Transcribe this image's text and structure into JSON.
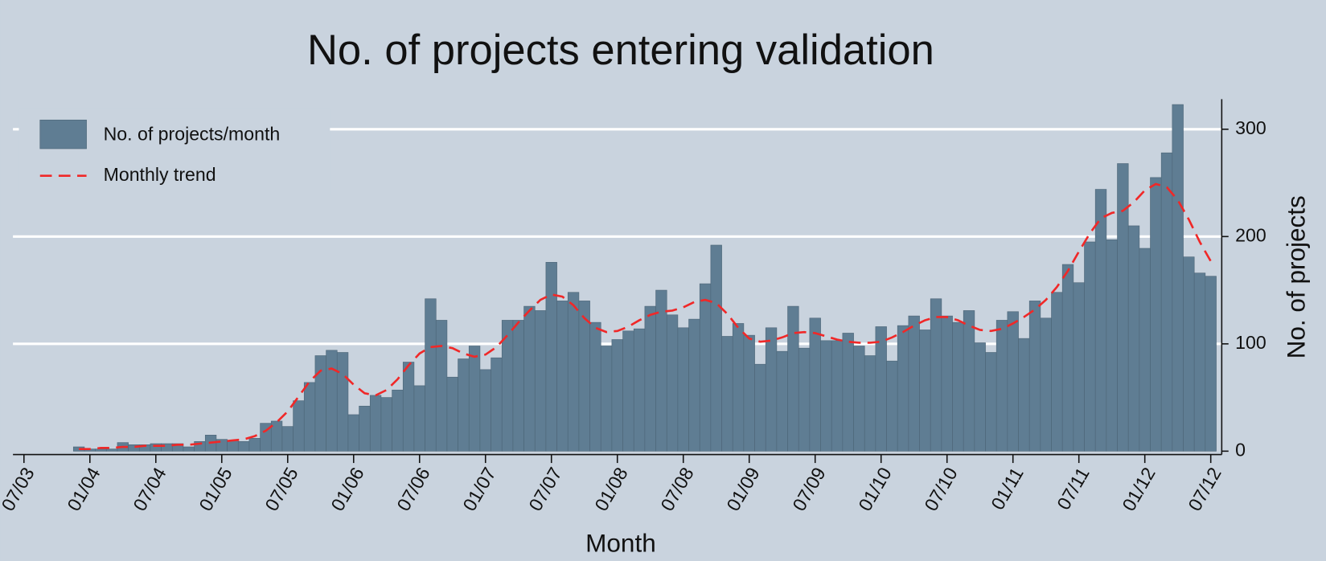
{
  "chart_data": {
    "type": "bar",
    "title": "No. of projects entering validation",
    "x_label": "Month",
    "y_label": "No. of projects",
    "y_axis_side": "right",
    "legend": "top-left",
    "grid": true,
    "x": [
      "2003-12",
      "2004-01",
      "2004-02",
      "2004-03",
      "2004-04",
      "2004-05",
      "2004-06",
      "2004-07",
      "2004-08",
      "2004-09",
      "2004-10",
      "2004-11",
      "2004-12",
      "2005-01",
      "2005-02",
      "2005-03",
      "2005-04",
      "2005-05",
      "2005-06",
      "2005-07",
      "2005-08",
      "2005-09",
      "2005-10",
      "2005-11",
      "2005-12",
      "2006-01",
      "2006-02",
      "2006-03",
      "2006-04",
      "2006-05",
      "2006-06",
      "2006-07",
      "2006-08",
      "2006-09",
      "2006-10",
      "2006-11",
      "2006-12",
      "2007-01",
      "2007-02",
      "2007-03",
      "2007-04",
      "2007-05",
      "2007-06",
      "2007-07",
      "2007-08",
      "2007-09",
      "2007-10",
      "2007-11",
      "2007-12",
      "2008-01",
      "2008-02",
      "2008-03",
      "2008-04",
      "2008-05",
      "2008-06",
      "2008-07",
      "2008-08",
      "2008-09",
      "2008-10",
      "2008-11",
      "2008-12",
      "2009-01",
      "2009-02",
      "2009-03",
      "2009-04",
      "2009-05",
      "2009-06",
      "2009-07",
      "2009-08",
      "2009-09",
      "2009-10",
      "2009-11",
      "2009-12",
      "2010-01",
      "2010-02",
      "2010-03",
      "2010-04",
      "2010-05",
      "2010-06",
      "2010-07",
      "2010-08",
      "2010-09",
      "2010-10",
      "2010-11",
      "2010-12",
      "2011-01",
      "2011-02",
      "2011-03",
      "2011-04",
      "2011-05",
      "2011-06",
      "2011-07",
      "2011-08",
      "2011-09",
      "2011-10",
      "2011-11",
      "2011-12",
      "2012-01",
      "2012-02",
      "2012-03",
      "2012-04",
      "2012-05",
      "2012-06",
      "2012-07"
    ],
    "series": [
      {
        "name": "No. of projects/month",
        "type": "bar",
        "color": "#5f7d93",
        "values": [
          4,
          2,
          2,
          2,
          8,
          6,
          6,
          7,
          7,
          7,
          4,
          9,
          15,
          11,
          10,
          9,
          12,
          26,
          28,
          23,
          47,
          64,
          89,
          94,
          92,
          34,
          42,
          52,
          50,
          57,
          83,
          61,
          142,
          122,
          69,
          86,
          98,
          76,
          87,
          122,
          122,
          135,
          131,
          176,
          140,
          148,
          140,
          120,
          98,
          104,
          112,
          114,
          135,
          150,
          127,
          115,
          123,
          156,
          192,
          107,
          119,
          108,
          81,
          115,
          93,
          135,
          96,
          124,
          103,
          103,
          110,
          98,
          89,
          116,
          84,
          117,
          126,
          113,
          142,
          126,
          120,
          131,
          101,
          92,
          122,
          130,
          105,
          140,
          124,
          148,
          174,
          157,
          195,
          244,
          197,
          268,
          210,
          189,
          255,
          278,
          323,
          181,
          166,
          163
        ]
      },
      {
        "name": "Monthly trend",
        "type": "line",
        "color": "#f02828",
        "dashed": true,
        "values": [
          2,
          2,
          3,
          3,
          4,
          4,
          5,
          5,
          5,
          6,
          6,
          7,
          8,
          9,
          10,
          11,
          14,
          19,
          27,
          37,
          51,
          65,
          75,
          77,
          72,
          62,
          54,
          52,
          57,
          67,
          80,
          91,
          97,
          98,
          96,
          91,
          88,
          90,
          97,
          108,
          120,
          131,
          141,
          146,
          144,
          136,
          124,
          115,
          111,
          112,
          116,
          122,
          127,
          130,
          131,
          134,
          139,
          141,
          138,
          128,
          115,
          105,
          102,
          103,
          106,
          110,
          111,
          110,
          107,
          104,
          102,
          101,
          101,
          102,
          106,
          111,
          117,
          122,
          125,
          125,
          122,
          117,
          113,
          112,
          114,
          119,
          125,
          132,
          141,
          153,
          168,
          186,
          203,
          217,
          222,
          224,
          232,
          243,
          249,
          246,
          234,
          216,
          195,
          177
        ]
      }
    ],
    "xlim": [
      "2003-06",
      "2012-08"
    ],
    "xticks": [
      {
        "value": "2003-07",
        "label": "07/03"
      },
      {
        "value": "2004-01",
        "label": "01/04"
      },
      {
        "value": "2004-07",
        "label": "07/04"
      },
      {
        "value": "2005-01",
        "label": "01/05"
      },
      {
        "value": "2005-07",
        "label": "07/05"
      },
      {
        "value": "2006-01",
        "label": "01/06"
      },
      {
        "value": "2006-07",
        "label": "07/06"
      },
      {
        "value": "2007-01",
        "label": "01/07"
      },
      {
        "value": "2007-07",
        "label": "07/07"
      },
      {
        "value": "2008-01",
        "label": "01/08"
      },
      {
        "value": "2008-07",
        "label": "07/08"
      },
      {
        "value": "2009-01",
        "label": "01/09"
      },
      {
        "value": "2009-07",
        "label": "07/09"
      },
      {
        "value": "2010-01",
        "label": "01/10"
      },
      {
        "value": "2010-07",
        "label": "07/10"
      },
      {
        "value": "2011-01",
        "label": "01/11"
      },
      {
        "value": "2011-07",
        "label": "07/11"
      },
      {
        "value": "2012-01",
        "label": "01/12"
      },
      {
        "value": "2012-07",
        "label": "07/12"
      }
    ],
    "ylim": [
      0,
      328
    ],
    "yticks": [
      0,
      100,
      200,
      300
    ]
  }
}
